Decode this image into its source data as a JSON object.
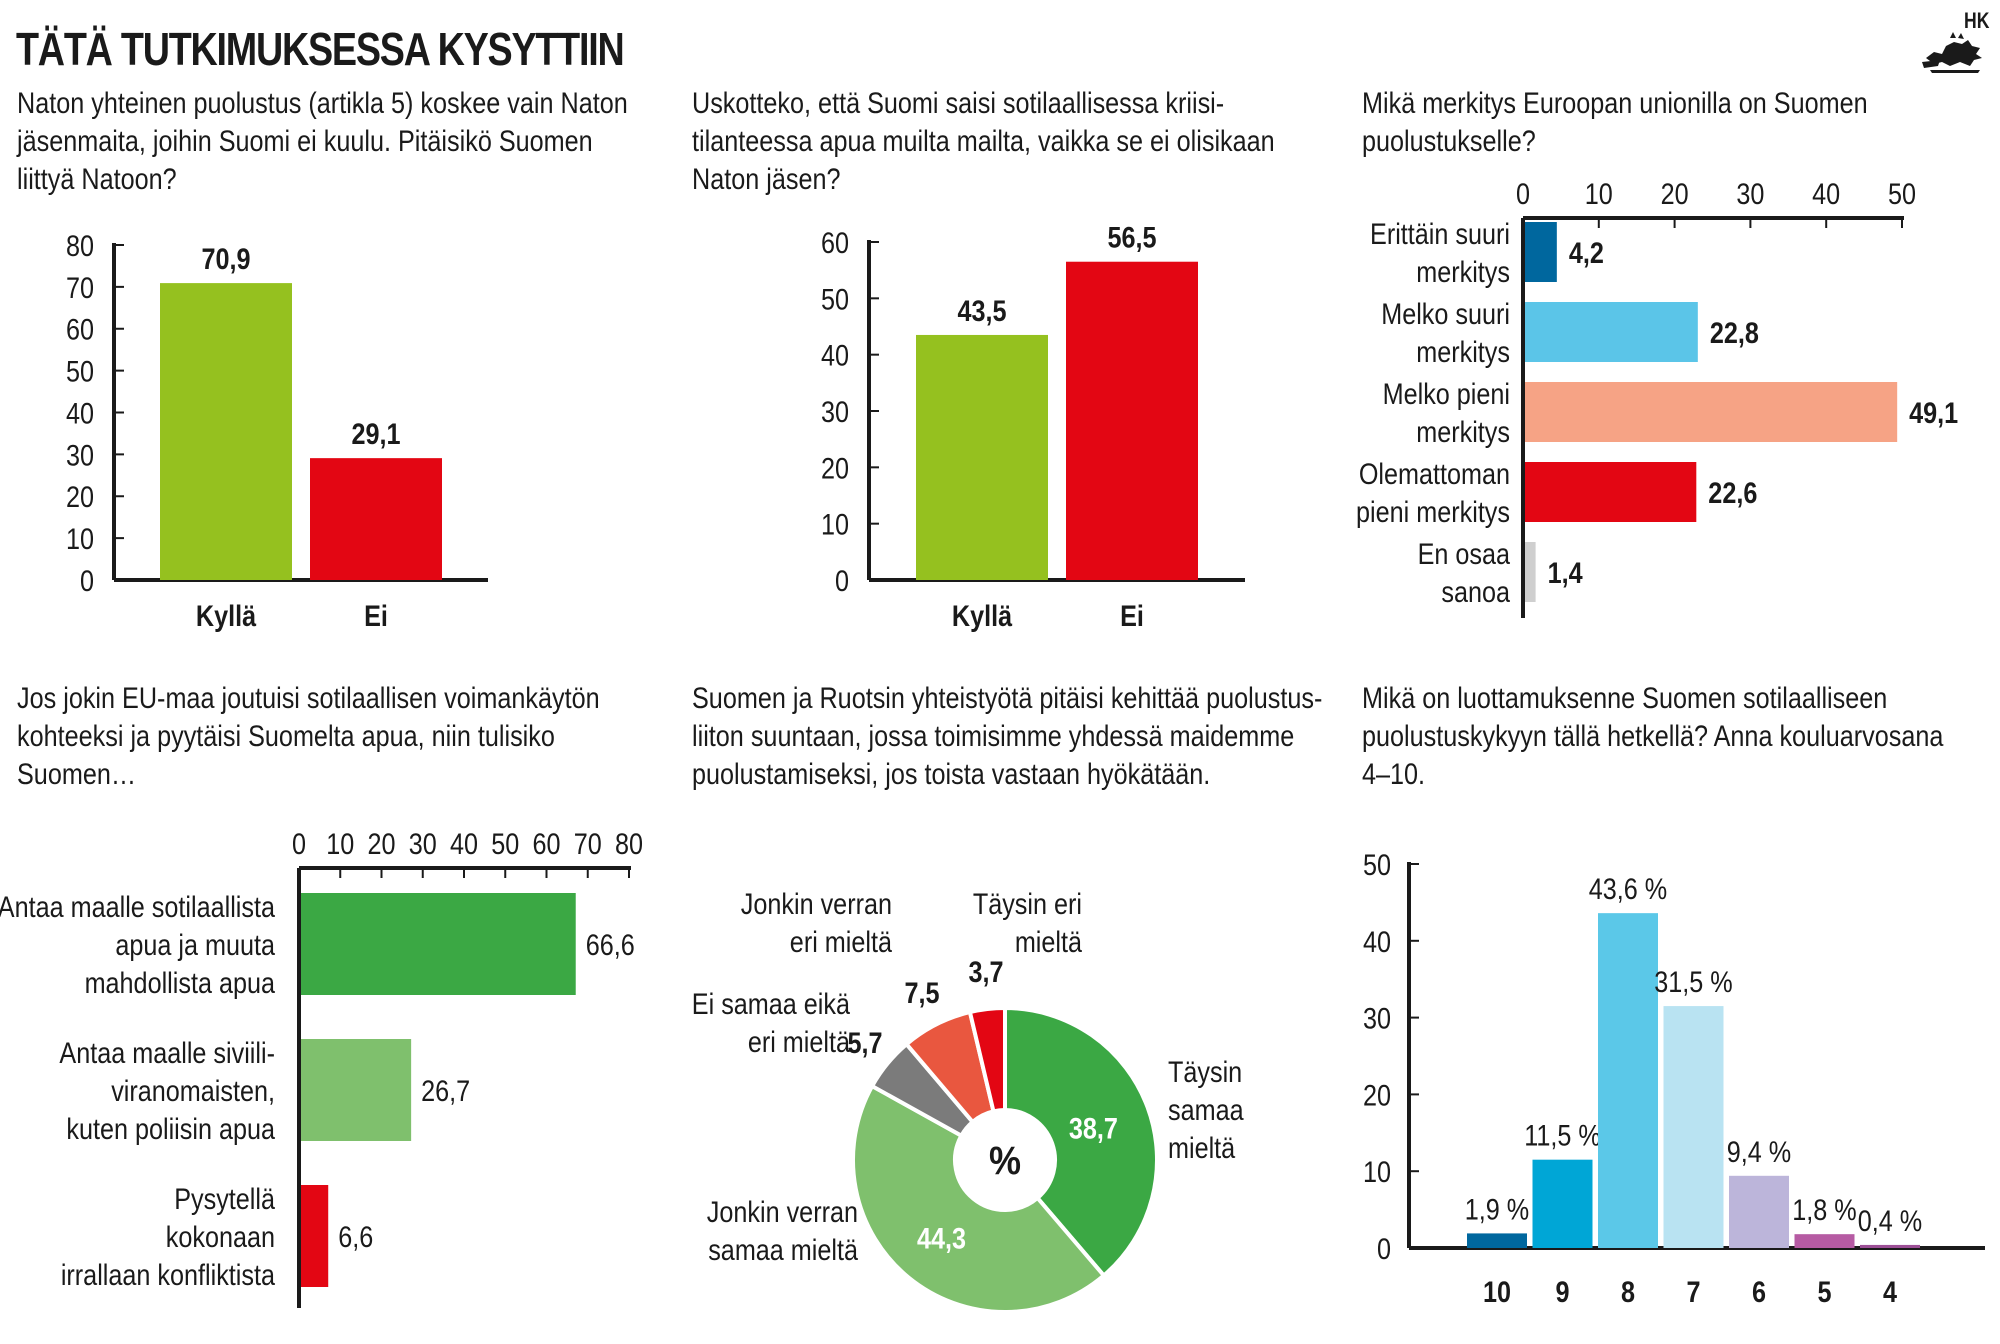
{
  "header": {
    "title": "TÄTÄ TUTKIMUKSESSA KYSYTTIIN",
    "source": "HK",
    "logo_icon": "lion-crest-icon"
  },
  "questions": {
    "q1": [
      "Naton yhteinen puolustus (artikla 5) koskee vain Naton",
      "jäsenmaita, joihin Suomi ei kuulu. Pitäisikö Suomen",
      "liittyä Natoon?"
    ],
    "q2": [
      "Uskotteko, että Suomi saisi sotilaallisessa kriisi-",
      "tilanteessa apua muilta mailta, vaikka se ei olisikaan",
      "Naton jäsen?"
    ],
    "q3": [
      "Mikä merkitys Euroopan unionilla on Suomen",
      "puolustukselle?"
    ],
    "q4": [
      "Jos jokin EU-maa joutuisi sotilaallisen voimankäytön",
      "kohteeksi ja pyytäisi Suomelta apua, niin tulisiko",
      "Suomen…"
    ],
    "q5": [
      "Suomen ja Ruotsin yhteistyötä pitäisi kehittää puolustus-",
      "liiton suuntaan, jossa toimisimme yhdessä maidemme",
      "puolustamiseksi, jos toista vastaan hyökätään."
    ],
    "q6": [
      "Mikä on luottamuksenne Suomen sotilaalliseen",
      "puolustuskykyyn tällä hetkellä? Anna kouluarvosana",
      "4–10."
    ]
  },
  "chart_data": [
    {
      "type": "bar",
      "categories": [
        "Kyllä",
        "Ei"
      ],
      "values": [
        70.9,
        29.1
      ],
      "value_labels": [
        "70,9",
        "29,1"
      ],
      "ylim": [
        0,
        80
      ],
      "yticks": [
        "0",
        "10",
        "20",
        "30",
        "40",
        "50",
        "60",
        "70",
        "80"
      ],
      "colors": [
        "#95c11f",
        "#e30613"
      ]
    },
    {
      "type": "bar",
      "categories": [
        "Kyllä",
        "Ei"
      ],
      "values": [
        43.5,
        56.5
      ],
      "value_labels": [
        "43,5",
        "56,5"
      ],
      "ylim": [
        0,
        60
      ],
      "yticks": [
        "0",
        "10",
        "20",
        "30",
        "40",
        "50",
        "60"
      ],
      "colors": [
        "#95c11f",
        "#e30613"
      ]
    },
    {
      "type": "bar",
      "orientation": "horizontal",
      "categories": [
        [
          "Erittäin suuri",
          "merkitys"
        ],
        [
          "Melko suuri",
          "merkitys"
        ],
        [
          "Melko pieni",
          "merkitys"
        ],
        [
          "Olemattoman",
          "pieni merkitys"
        ],
        [
          "En osaa",
          "sanoa"
        ]
      ],
      "values": [
        4.2,
        22.8,
        49.1,
        22.6,
        1.4
      ],
      "value_labels": [
        "4,2",
        "22,8",
        "49,1",
        "22,6",
        "1,4"
      ],
      "xlim": [
        0,
        50
      ],
      "xticks": [
        "0",
        "10",
        "20",
        "30",
        "40",
        "50"
      ],
      "colors": [
        "#00679e",
        "#5bc5e8",
        "#f6a385",
        "#e30613",
        "#cfcfcf"
      ]
    },
    {
      "type": "bar",
      "orientation": "horizontal",
      "categories": [
        [
          "Antaa maalle sotilaallista",
          "apua ja muuta",
          "mahdollista apua"
        ],
        [
          "Antaa maalle siviili-",
          "viranomaisten,",
          "kuten poliisin apua"
        ],
        [
          "Pysytellä",
          "kokonaan",
          "irrallaan konfliktista"
        ]
      ],
      "values": [
        66.6,
        26.7,
        6.6
      ],
      "value_labels": [
        "66,6",
        "26,7",
        "6,6"
      ],
      "xlim": [
        0,
        80
      ],
      "xticks": [
        "0",
        "10",
        "20",
        "30",
        "40",
        "50",
        "60",
        "70",
        "80"
      ],
      "colors": [
        "#3ba844",
        "#7fc06d",
        "#e30613"
      ]
    },
    {
      "type": "pie",
      "center_label": "%",
      "slices": [
        {
          "label": [
            "Täysin",
            "samaa",
            "mieltä"
          ],
          "value": 38.7,
          "value_label": "38,7",
          "color": "#3ba844"
        },
        {
          "label": [
            "Jonkin verran",
            "samaa mieltä"
          ],
          "value": 44.3,
          "value_label": "44,3",
          "color": "#7fc06d"
        },
        {
          "label": [
            "Ei samaa eikä",
            "eri mieltä"
          ],
          "value": 5.7,
          "value_label": "5,7",
          "color": "#7b7b7b"
        },
        {
          "label": [
            "Jonkin verran",
            "eri mieltä"
          ],
          "value": 7.5,
          "value_label": "7,5",
          "color": "#e9573f"
        },
        {
          "label": [
            "Täysin eri",
            "mieltä"
          ],
          "value": 3.7,
          "value_label": "3,7",
          "color": "#e30613"
        }
      ]
    },
    {
      "type": "bar",
      "categories": [
        "10",
        "9",
        "8",
        "7",
        "6",
        "5",
        "4"
      ],
      "values": [
        1.9,
        11.5,
        43.6,
        31.5,
        9.4,
        1.8,
        0.4
      ],
      "value_labels": [
        "1,9 %",
        "11,5 %",
        "43,6 %",
        "31,5 %",
        "9,4 %",
        "1,8 %",
        "0,4 %"
      ],
      "ylim": [
        0,
        50
      ],
      "yticks": [
        "0",
        "10",
        "20",
        "30",
        "40",
        "50"
      ],
      "colors": [
        "#00679e",
        "#00a6d6",
        "#5bc8e8",
        "#b9e3f2",
        "#bcb5da",
        "#b65ba3",
        "#9c4f96"
      ]
    }
  ]
}
